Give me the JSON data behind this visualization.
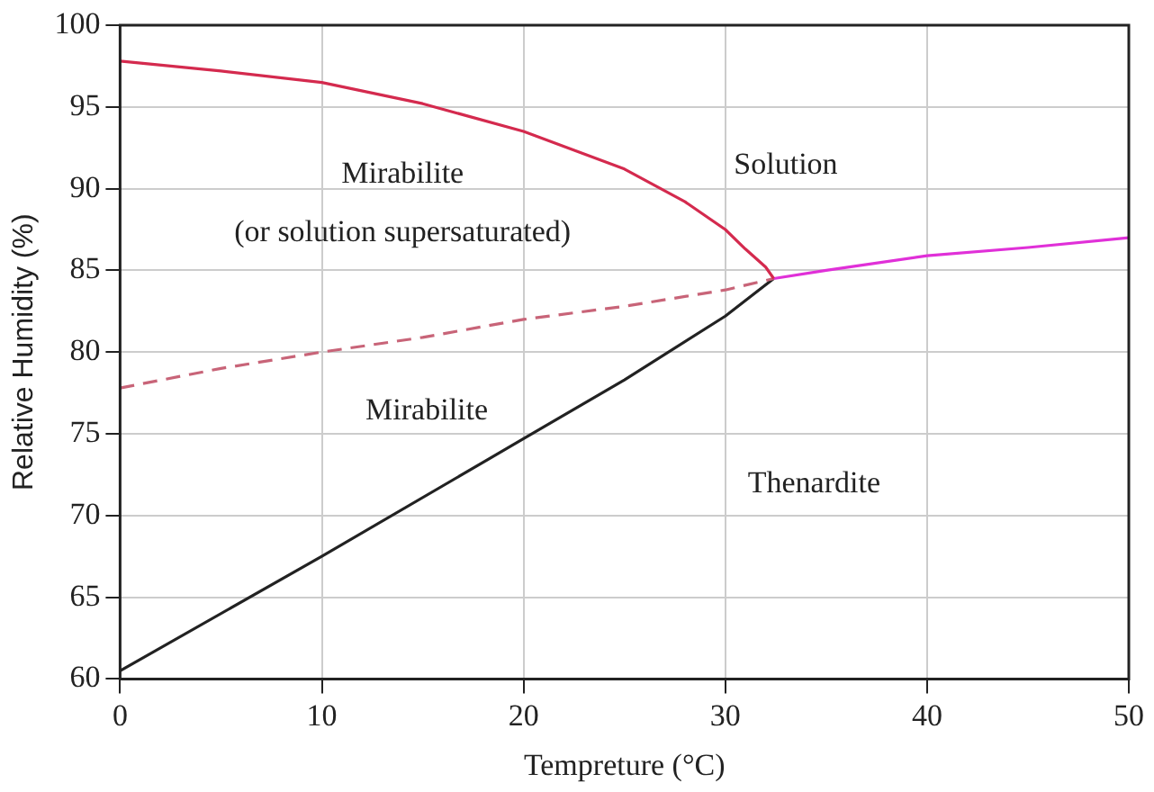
{
  "chart_data": {
    "type": "line",
    "xlabel": "Tempreture (°C)",
    "ylabel": "Relative Humidity (%)",
    "xlim": [
      0,
      50
    ],
    "xticks": [
      0,
      10,
      20,
      30,
      40,
      50
    ],
    "ylim": [
      60,
      100
    ],
    "yticks": [
      60,
      65,
      70,
      75,
      80,
      85,
      90,
      95,
      100
    ],
    "grid": true,
    "legend": false,
    "marker": "none",
    "series": [
      {
        "color": "#d42a4e",
        "x": [
          0,
          5,
          10,
          15,
          20,
          25,
          28,
          30,
          31,
          32,
          32.4
        ],
        "values": [
          97.8,
          97.2,
          96.5,
          95.2,
          93.5,
          91.2,
          89.2,
          87.5,
          86.3,
          85.2,
          84.5
        ]
      },
      {
        "color": "#e030d8",
        "x": [
          32.4,
          35,
          40,
          45,
          50
        ],
        "values": [
          84.5,
          85,
          85.9,
          86.4,
          87
        ]
      },
      {
        "color": "#c86478",
        "line_style": "dashed",
        "x": [
          0,
          5,
          10,
          15,
          20,
          25,
          30,
          32.4
        ],
        "values": [
          77.8,
          79,
          80,
          80.9,
          82,
          82.8,
          83.8,
          84.5
        ]
      },
      {
        "color": "#222222",
        "x": [
          0,
          10,
          20,
          25,
          30,
          32.4
        ],
        "values": [
          60.5,
          67.5,
          74.7,
          78.3,
          82.2,
          84.5
        ]
      }
    ],
    "annotations": [
      "Mirabilite",
      "(or solution supersaturated)",
      "Solution",
      "Mirabilite",
      "Thenardite"
    ]
  }
}
